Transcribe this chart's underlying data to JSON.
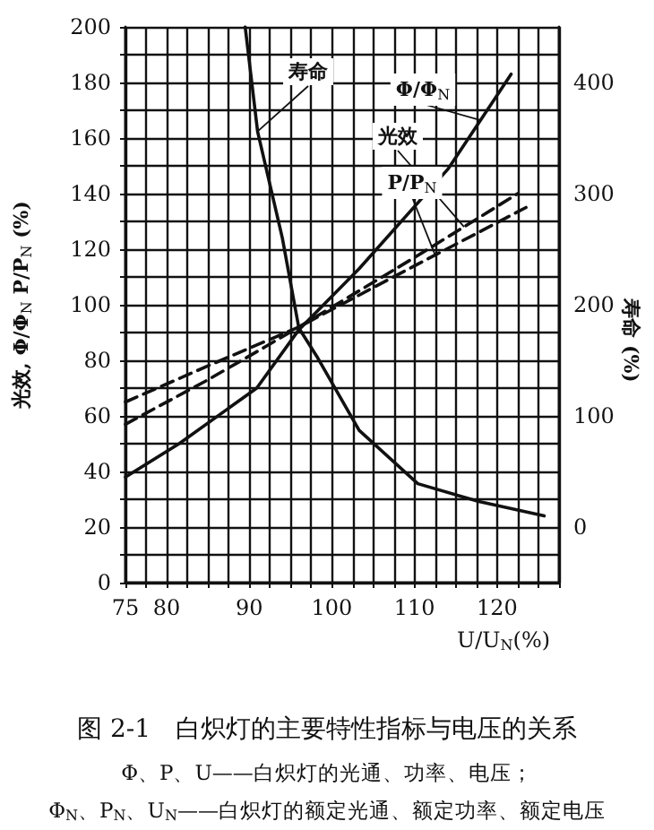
{
  "chart_data": {
    "type": "line",
    "title": "图 2-1　白炽灯的主要特性指标与电压的关系",
    "annotations": [
      "Φ、P、U——白炽灯的光通、功率、电压；",
      "Φ$_{N}$、P$_{N}$、U$_{N}$——白炽灯的额定光通、额定功率、额定电压"
    ],
    "xlabel": "U/U$_{N}$(%)",
    "ylabel": "光效, Φ/Φ$_{N}$ P/P$_{N}$ (%)",
    "y2label": "寿命 (%)",
    "xlim": [
      75,
      127.5
    ],
    "xticks": [
      75,
      {
        "value": 77.5,
        "label": null
      },
      80,
      {
        "value": 82.5,
        "label": null
      },
      {
        "value": 85,
        "label": null
      },
      {
        "value": 87.5,
        "label": null
      },
      90,
      {
        "value": 92.5,
        "label": null
      },
      {
        "value": 95,
        "label": null
      },
      {
        "value": 97.5,
        "label": null
      },
      100,
      {
        "value": 102.5,
        "label": null
      },
      {
        "value": 105,
        "label": null
      },
      {
        "value": 107.5,
        "label": null
      },
      110,
      {
        "value": 112.5,
        "label": null
      },
      {
        "value": 115,
        "label": null
      },
      {
        "value": 117.5,
        "label": null
      },
      120,
      {
        "value": 122.5,
        "label": null
      },
      {
        "value": 125,
        "label": null
      },
      {
        "value": 127.5,
        "label": null
      }
    ],
    "ylim": [
      0,
      200
    ],
    "yticks": [
      0,
      {
        "value": 10,
        "label": null
      },
      20,
      {
        "value": 30,
        "label": null
      },
      40,
      {
        "value": 50,
        "label": null
      },
      60,
      {
        "value": 70,
        "label": null
      },
      80,
      {
        "value": 90,
        "label": null
      },
      100,
      {
        "value": 110,
        "label": null
      },
      120,
      {
        "value": 130,
        "label": null
      },
      140,
      {
        "value": 150,
        "label": null
      },
      160,
      {
        "value": 170,
        "label": null
      },
      180,
      {
        "value": 190,
        "label": null
      },
      200
    ],
    "y2lim": [
      -50,
      450
    ],
    "y2ticks": [
      0,
      100,
      200,
      300,
      400
    ],
    "grid": true,
    "marker": "none",
    "series": [
      {
        "name": "寿命",
        "color": "#111111",
        "axis": "y2",
        "line_style": "solid",
        "x": [
          89.5,
          91,
          94,
          96,
          98.3,
          103.3,
          110.4,
          117.8,
          125.7
        ],
        "values": [
          450,
          356,
          260,
          179,
          152,
          87,
          39,
          23,
          10
        ]
      },
      {
        "name": "Φ/Φ$_{N}$",
        "color": "#111111",
        "line_style": "solid",
        "x": [
          75,
          81.5,
          90.9,
          96,
          103.3,
          114.1,
          121.7
        ],
        "values": [
          38,
          50,
          70,
          91,
          113,
          149,
          183
        ]
      },
      {
        "name": "光效",
        "color": "#111111",
        "line_style": "dashed",
        "x": [
          75,
          85,
          92,
          96,
          110,
          122.5
        ],
        "values": [
          57,
          73,
          85,
          92,
          117,
          140
        ]
      },
      {
        "name": "P/P$_{N}$",
        "color": "#111111",
        "line_style": "dashed",
        "x": [
          75,
          85,
          96,
          110,
          123.5
        ],
        "values": [
          65,
          78,
          92,
          114,
          135
        ]
      }
    ]
  }
}
